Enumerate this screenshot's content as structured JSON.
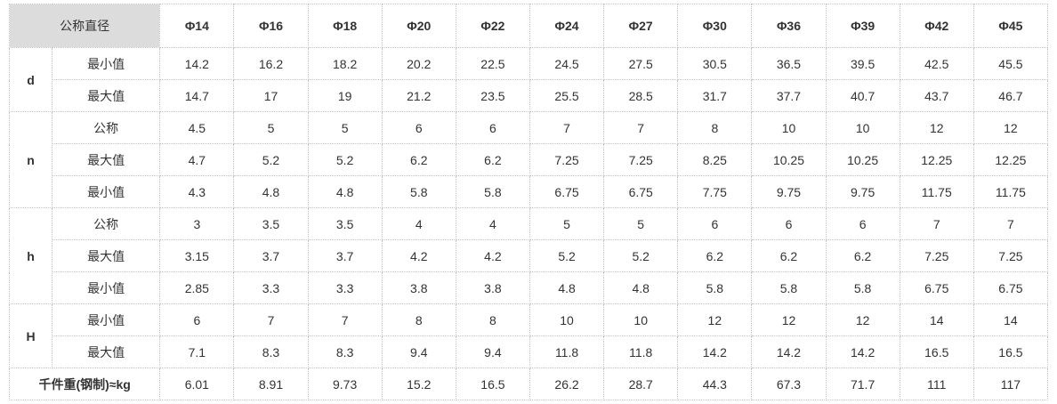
{
  "table": {
    "corner_label": "公称直径",
    "columns": [
      "Φ14",
      "Φ16",
      "Φ18",
      "Φ20",
      "Φ22",
      "Φ24",
      "Φ27",
      "Φ30",
      "Φ36",
      "Φ39",
      "Φ42",
      "Φ45"
    ],
    "groups": [
      {
        "label": "d",
        "rows": [
          {
            "label": "最小值",
            "values": [
              "14.2",
              "16.2",
              "18.2",
              "20.2",
              "22.5",
              "24.5",
              "27.5",
              "30.5",
              "36.5",
              "39.5",
              "42.5",
              "45.5"
            ]
          },
          {
            "label": "最大值",
            "values": [
              "14.7",
              "17",
              "19",
              "21.2",
              "23.5",
              "25.5",
              "28.5",
              "31.7",
              "37.7",
              "40.7",
              "43.7",
              "46.7"
            ]
          }
        ]
      },
      {
        "label": "n",
        "rows": [
          {
            "label": "公称",
            "values": [
              "4.5",
              "5",
              "5",
              "6",
              "6",
              "7",
              "7",
              "8",
              "10",
              "10",
              "12",
              "12"
            ]
          },
          {
            "label": "最大值",
            "values": [
              "4.7",
              "5.2",
              "5.2",
              "6.2",
              "6.2",
              "7.25",
              "7.25",
              "8.25",
              "10.25",
              "10.25",
              "12.25",
              "12.25"
            ]
          },
          {
            "label": "最小值",
            "values": [
              "4.3",
              "4.8",
              "4.8",
              "5.8",
              "5.8",
              "6.75",
              "6.75",
              "7.75",
              "9.75",
              "9.75",
              "11.75",
              "11.75"
            ]
          }
        ]
      },
      {
        "label": "h",
        "rows": [
          {
            "label": "公称",
            "values": [
              "3",
              "3.5",
              "3.5",
              "4",
              "4",
              "5",
              "5",
              "6",
              "6",
              "6",
              "7",
              "7"
            ]
          },
          {
            "label": "最大值",
            "values": [
              "3.15",
              "3.7",
              "3.7",
              "4.2",
              "4.2",
              "5.2",
              "5.2",
              "6.2",
              "6.2",
              "6.2",
              "7.25",
              "7.25"
            ]
          },
          {
            "label": "最小值",
            "values": [
              "2.85",
              "3.3",
              "3.3",
              "3.8",
              "3.8",
              "4.8",
              "4.8",
              "5.8",
              "5.8",
              "5.8",
              "6.75",
              "6.75"
            ]
          }
        ]
      },
      {
        "label": "H",
        "rows": [
          {
            "label": "最小值",
            "values": [
              "6",
              "7",
              "7",
              "8",
              "8",
              "10",
              "10",
              "12",
              "12",
              "12",
              "14",
              "14"
            ]
          },
          {
            "label": "最大值",
            "values": [
              "7.1",
              "8.3",
              "8.3",
              "9.4",
              "9.4",
              "11.8",
              "11.8",
              "14.2",
              "14.2",
              "14.2",
              "16.5",
              "16.5"
            ]
          }
        ]
      }
    ],
    "weight_row": {
      "label": "千件重(钢制)≈kg",
      "values": [
        "6.01",
        "8.91",
        "9.73",
        "15.2",
        "16.5",
        "26.2",
        "28.7",
        "44.3",
        "67.3",
        "71.7",
        "111",
        "117"
      ]
    },
    "colors": {
      "header_text": "#1a5fb4",
      "corner_background": "#dcdcdc",
      "border": "#c4c4c4"
    }
  }
}
